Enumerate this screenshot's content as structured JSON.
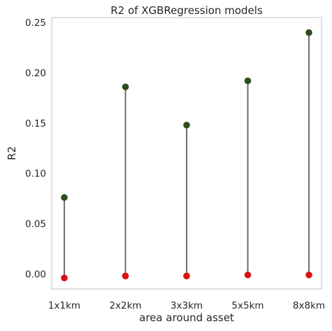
{
  "chart_data": {
    "type": "lollipop",
    "title": "R2 of XGBRegression models",
    "xlabel": "area around asset",
    "ylabel": "R2",
    "categories": [
      "1x1km",
      "2x2km",
      "3x3km",
      "5x5km",
      "8x8km"
    ],
    "series": [
      {
        "values": [
          0.076,
          0.186,
          0.148,
          0.192,
          0.24
        ],
        "color": "#2e4d1e"
      },
      {
        "values": [
          -0.004,
          -0.002,
          -0.002,
          -0.001,
          -0.001
        ],
        "color": "#dd1111"
      }
    ],
    "stem_color": "#6e6e6e",
    "ylim": [
      -0.015,
      0.255
    ],
    "yticks": [
      "0.00",
      "0.05",
      "0.10",
      "0.15",
      "0.20",
      "0.25"
    ],
    "grid": false
  }
}
